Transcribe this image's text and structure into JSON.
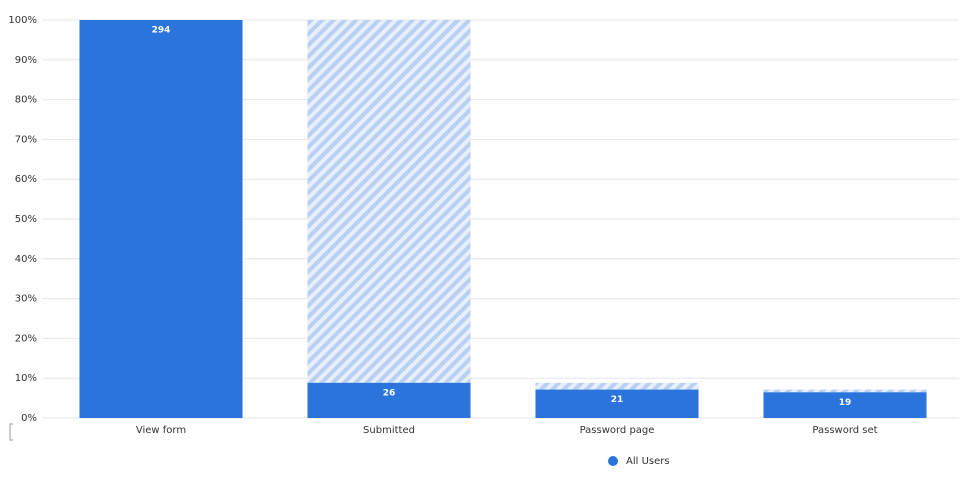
{
  "chart_data": {
    "type": "funnel",
    "categories": [
      "View form",
      "Submitted",
      "Password page",
      "Password set"
    ],
    "series": [
      {
        "name": "All Users",
        "color": "#2a74dc",
        "values": [
          100,
          8.84,
          7.14,
          6.46
        ]
      }
    ],
    "counts": [
      294,
      26,
      21,
      19
    ],
    "ylim": [
      0,
      100
    ],
    "yticks": [
      {
        "value": 0,
        "label": "0%"
      },
      {
        "value": 10,
        "label": "10%"
      },
      {
        "value": 20,
        "label": "20%"
      },
      {
        "value": 30,
        "label": "30%"
      },
      {
        "value": 40,
        "label": "40%"
      },
      {
        "value": 50,
        "label": "50%"
      },
      {
        "value": 60,
        "label": "60%"
      },
      {
        "value": 70,
        "label": "70%"
      },
      {
        "value": 80,
        "label": "80%"
      },
      {
        "value": 90,
        "label": "90%"
      },
      {
        "value": 100,
        "label": "100%"
      }
    ],
    "grid": true
  }
}
